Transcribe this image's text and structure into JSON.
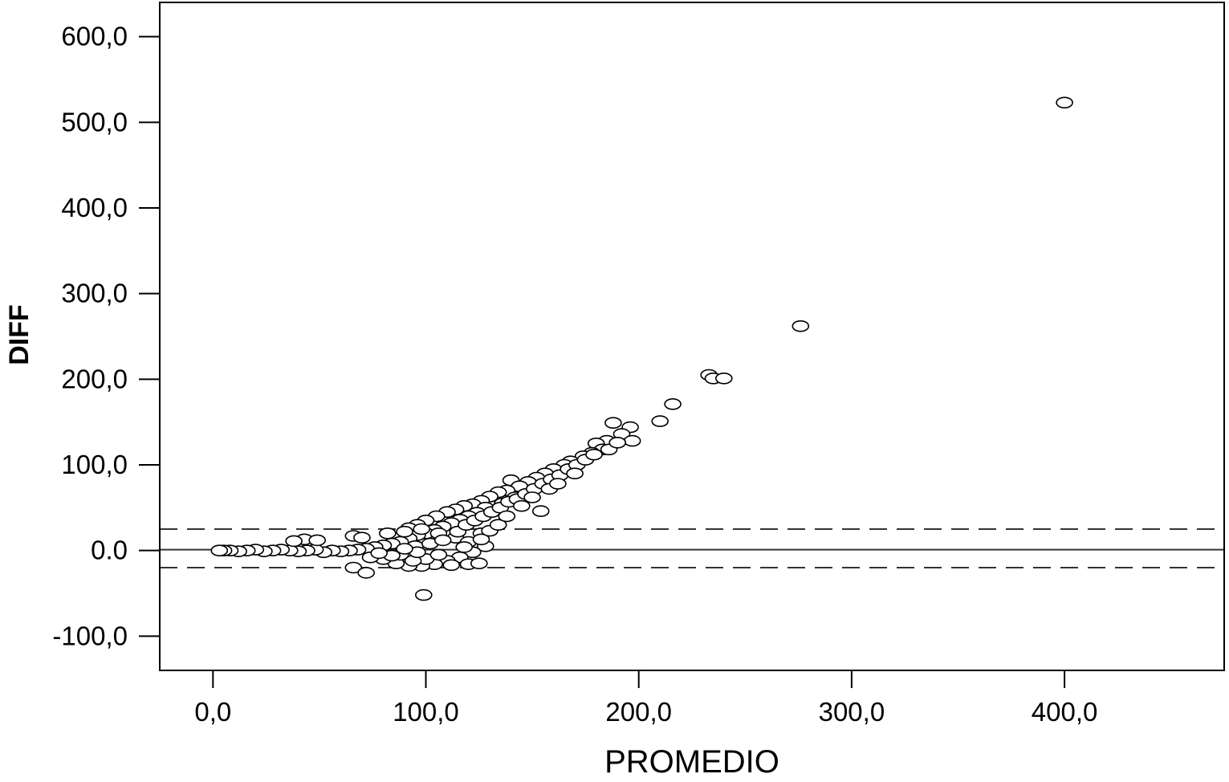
{
  "chart_data": {
    "type": "scatter",
    "title": "",
    "xlabel": "PROMEDIO",
    "ylabel": "DIFF",
    "xlim": [
      -25,
      475
    ],
    "ylim": [
      -140,
      640
    ],
    "x_ticks": [
      0,
      100,
      200,
      300,
      400
    ],
    "x_tick_labels": [
      "0,0",
      "100,0",
      "200,0",
      "300,0",
      "400,0"
    ],
    "y_ticks": [
      600,
      500,
      400,
      300,
      200,
      100,
      0,
      -100
    ],
    "y_tick_labels": [
      "600,0",
      "500,0",
      "400,0",
      "300,0",
      "200,0",
      "100,0",
      "0.0",
      "-100,0"
    ],
    "grid": false,
    "legend": "none",
    "reference_lines": [
      {
        "name": "mean",
        "y": 1,
        "style": "solid"
      },
      {
        "name": "upper limit",
        "y": 25,
        "style": "dashed"
      },
      {
        "name": "lower limit",
        "y": -20,
        "style": "dashed"
      }
    ],
    "marker": "open-circle",
    "colors": {
      "marker_stroke": "#000000",
      "marker_fill": "#ffffff",
      "axis": "#000000",
      "line": "#333333"
    },
    "points": [
      [
        400,
        523
      ],
      [
        276,
        262
      ],
      [
        233,
        205
      ],
      [
        235,
        201
      ],
      [
        240,
        201
      ],
      [
        216,
        171
      ],
      [
        210,
        151
      ],
      [
        188,
        149
      ],
      [
        196,
        144
      ],
      [
        192,
        136
      ],
      [
        197,
        128
      ],
      [
        185,
        128
      ],
      [
        180,
        125
      ],
      [
        183,
        118
      ],
      [
        178,
        114
      ],
      [
        174,
        110
      ],
      [
        168,
        104
      ],
      [
        165,
        100
      ],
      [
        160,
        95
      ],
      [
        156,
        90
      ],
      [
        152,
        85
      ],
      [
        148,
        80
      ],
      [
        140,
        82
      ],
      [
        144,
        75
      ],
      [
        138,
        70
      ],
      [
        134,
        68
      ],
      [
        130,
        63
      ],
      [
        126,
        58
      ],
      [
        122,
        54
      ],
      [
        118,
        52
      ],
      [
        114,
        48
      ],
      [
        110,
        45
      ],
      [
        105,
        40
      ],
      [
        100,
        35
      ],
      [
        96,
        30
      ],
      [
        92,
        26
      ],
      [
        154,
        46
      ],
      [
        142,
        62
      ],
      [
        136,
        55
      ],
      [
        128,
        50
      ],
      [
        124,
        44
      ],
      [
        120,
        40
      ],
      [
        116,
        36
      ],
      [
        112,
        32
      ],
      [
        108,
        28
      ],
      [
        104,
        24
      ],
      [
        100,
        20
      ],
      [
        96,
        18
      ],
      [
        92,
        14
      ],
      [
        88,
        10
      ],
      [
        84,
        8
      ],
      [
        80,
        6
      ],
      [
        76,
        4
      ],
      [
        72,
        2
      ],
      [
        68,
        1
      ],
      [
        64,
        0
      ],
      [
        60,
        -1
      ],
      [
        56,
        0
      ],
      [
        52,
        -2
      ],
      [
        48,
        1
      ],
      [
        44,
        0
      ],
      [
        40,
        -1
      ],
      [
        36,
        0
      ],
      [
        32,
        1
      ],
      [
        28,
        0
      ],
      [
        24,
        -1
      ],
      [
        20,
        1
      ],
      [
        16,
        0
      ],
      [
        12,
        -1
      ],
      [
        8,
        0
      ],
      [
        5,
        0
      ],
      [
        3,
        0
      ],
      [
        43,
        13
      ],
      [
        38,
        11
      ],
      [
        49,
        12
      ],
      [
        66,
        17
      ],
      [
        70,
        15
      ],
      [
        82,
        20
      ],
      [
        90,
        22
      ],
      [
        98,
        25
      ],
      [
        106,
        20
      ],
      [
        114,
        15
      ],
      [
        120,
        10
      ],
      [
        126,
        20
      ],
      [
        128,
        5
      ],
      [
        122,
        -2
      ],
      [
        116,
        -8
      ],
      [
        110,
        -12
      ],
      [
        104,
        -16
      ],
      [
        98,
        -18
      ],
      [
        92,
        -18
      ],
      [
        86,
        -15
      ],
      [
        80,
        -10
      ],
      [
        74,
        -8
      ],
      [
        112,
        -17
      ],
      [
        120,
        -16
      ],
      [
        125,
        -15
      ],
      [
        100,
        -10
      ],
      [
        94,
        -12
      ],
      [
        88,
        -5
      ],
      [
        95,
        5
      ],
      [
        102,
        8
      ],
      [
        108,
        12
      ],
      [
        115,
        22
      ],
      [
        119,
        30
      ],
      [
        123,
        35
      ],
      [
        127,
        40
      ],
      [
        131,
        45
      ],
      [
        135,
        50
      ],
      [
        139,
        57
      ],
      [
        143,
        60
      ],
      [
        147,
        66
      ],
      [
        151,
        72
      ],
      [
        155,
        78
      ],
      [
        159,
        83
      ],
      [
        163,
        88
      ],
      [
        167,
        95
      ],
      [
        171,
        100
      ],
      [
        175,
        106
      ],
      [
        179,
        112
      ],
      [
        126,
        13
      ],
      [
        118,
        4
      ],
      [
        106,
        -5
      ],
      [
        96,
        -2
      ],
      [
        90,
        2
      ],
      [
        84,
        -6
      ],
      [
        78,
        -3
      ],
      [
        66,
        -20
      ],
      [
        72,
        -26
      ],
      [
        99,
        -52
      ],
      [
        130,
        23
      ],
      [
        134,
        30
      ],
      [
        138,
        40
      ],
      [
        145,
        52
      ],
      [
        150,
        62
      ],
      [
        158,
        72
      ],
      [
        162,
        78
      ],
      [
        170,
        90
      ],
      [
        186,
        118
      ],
      [
        190,
        126
      ]
    ]
  }
}
